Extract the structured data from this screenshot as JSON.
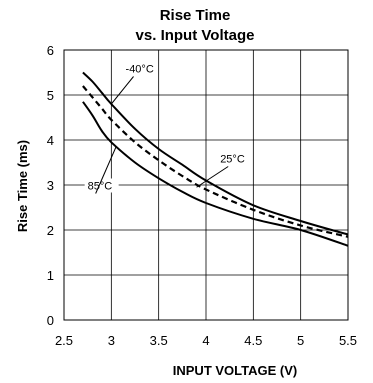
{
  "chart_data": {
    "type": "line",
    "title": "Rise Time",
    "subtitle": "vs. Input Voltage",
    "xlabel": "INPUT VOLTAGE (V)",
    "ylabel": "Rise Time (ms)",
    "xlim": [
      2.5,
      5.5
    ],
    "ylim": [
      0,
      6
    ],
    "x_ticks": [
      "2.5",
      "3",
      "3.5",
      "4",
      "4.5",
      "5",
      "5.5"
    ],
    "y_ticks": [
      "0",
      "1",
      "2",
      "3",
      "4",
      "5",
      "6"
    ],
    "grid": true,
    "series": [
      {
        "name": "-40°C",
        "style": "solid",
        "x": [
          2.7,
          2.8,
          2.9,
          3.0,
          3.25,
          3.5,
          3.75,
          4.0,
          4.5,
          5.0,
          5.5
        ],
        "y": [
          5.5,
          5.3,
          5.05,
          4.8,
          4.25,
          3.8,
          3.45,
          3.1,
          2.55,
          2.2,
          1.9
        ]
      },
      {
        "name": "25°C",
        "style": "dashed",
        "x": [
          2.7,
          2.8,
          2.9,
          3.0,
          3.25,
          3.5,
          3.75,
          4.0,
          4.5,
          5.0,
          5.5
        ],
        "y": [
          5.2,
          4.95,
          4.7,
          4.45,
          3.95,
          3.55,
          3.2,
          2.9,
          2.45,
          2.1,
          1.85
        ]
      },
      {
        "name": "85°C",
        "style": "solid",
        "x": [
          2.7,
          2.8,
          2.9,
          3.0,
          3.25,
          3.5,
          3.75,
          4.0,
          4.5,
          5.0,
          5.5
        ],
        "y": [
          4.85,
          4.55,
          4.2,
          3.95,
          3.5,
          3.15,
          2.85,
          2.6,
          2.25,
          2.0,
          1.65
        ]
      }
    ],
    "annotations": [
      {
        "text": "-40°C",
        "series": "-40°C",
        "x": 3.15,
        "y": 5.5,
        "point_x": 3.0,
        "point_y": 4.8
      },
      {
        "text": "25°C",
        "series": "25°C",
        "x": 4.15,
        "y": 3.5,
        "point_x": 3.9,
        "point_y": 2.95
      },
      {
        "text": "85°C",
        "series": "85°C",
        "x": 2.75,
        "y": 2.9,
        "point_x": 3.05,
        "point_y": 3.85
      }
    ]
  }
}
